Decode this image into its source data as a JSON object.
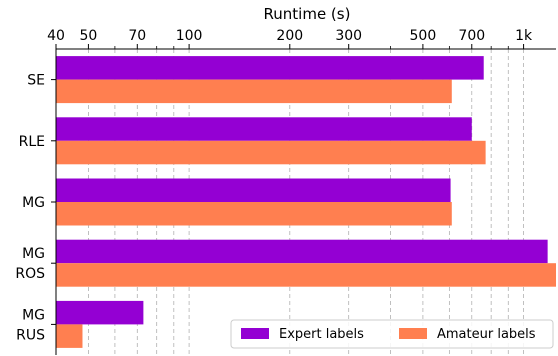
{
  "chart_data": {
    "type": "bar",
    "orientation": "horizontal",
    "title": "",
    "xlabel": "Runtime (s)",
    "ylabel": "",
    "x_axis_position": "top",
    "x_scale": "log",
    "xlim": [
      40,
      1250
    ],
    "x_ticks": [
      {
        "value": 40,
        "label": "40"
      },
      {
        "value": 50,
        "label": "50"
      },
      {
        "value": 70,
        "label": "70"
      },
      {
        "value": 100,
        "label": "100"
      },
      {
        "value": 200,
        "label": "200"
      },
      {
        "value": 300,
        "label": "300"
      },
      {
        "value": 500,
        "label": "500"
      },
      {
        "value": 700,
        "label": "700"
      },
      {
        "value": 1000,
        "label": "1k"
      }
    ],
    "minor_gridlines": [
      60,
      80,
      90,
      400,
      600,
      800,
      900
    ],
    "grid": true,
    "categories": [
      {
        "lines": [
          "SE"
        ]
      },
      {
        "lines": [
          "RLE"
        ]
      },
      {
        "lines": [
          "MG"
        ]
      },
      {
        "lines": [
          "MG",
          "ROS"
        ]
      },
      {
        "lines": [
          "MG",
          "RUS"
        ]
      }
    ],
    "series": [
      {
        "name": "Expert labels",
        "color": "#9400D3",
        "values": [
          760,
          700,
          605,
          1180,
          73
        ]
      },
      {
        "name": "Amateur labels",
        "color": "#FF7F50",
        "values": [
          610,
          770,
          610,
          1250,
          48
        ]
      }
    ],
    "legend": {
      "placement": "bottom-right"
    }
  }
}
